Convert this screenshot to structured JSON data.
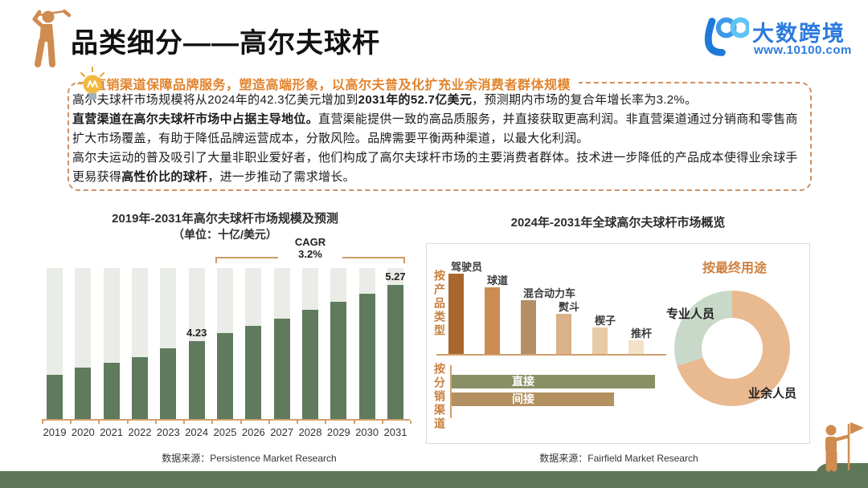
{
  "header": {
    "title": "品类细分——高尔夫球杆",
    "icon": "golfer-swing-icon",
    "icon_color": "#cf8b50",
    "logo": {
      "mark": "10100-logo-mark",
      "brand": "大数跨境",
      "website": "www.10100.com",
      "color": "#2b7ade"
    }
  },
  "summary": {
    "icon": "lightbulb-icon",
    "heading": "直销渠道保障品牌服务，塑造高端形象，以高尔夫普及化扩充业余消费者群体规模",
    "heading_color": "#e2832c",
    "border_color": "#d09163",
    "paragraphs": [
      [
        {
          "t": "高尔夫球杆市场规模将从2024年的42.3亿美元增加到"
        },
        {
          "t": "2031年的52.7亿美元",
          "b": true
        },
        {
          "t": "，预测期内市场的复合年增长率为3.2%。"
        }
      ],
      [
        {
          "t": "直营渠道在高尔夫球杆市场中占据主导地位。",
          "b": true
        },
        {
          "t": "直营渠能提供一致的高品质服务，并直接获取更高利润。非直营渠道通过分销商和零售商扩大市场覆盖，有助于降低品牌运营成本，分散风险。品牌需要平衡两种渠道，以最大化利润。"
        }
      ],
      [
        {
          "t": "高尔夫运动的普及吸引了大量非职业爱好者，他们构成了高尔夫球杆市场的主要消费者群体。技术进一步降低的产品成本使得业余球手更易获得"
        },
        {
          "t": "高性价比的球杆",
          "b": true
        },
        {
          "t": "，进一步推动了需求增长。"
        }
      ]
    ]
  },
  "chart_data": [
    {
      "id": "market_size",
      "type": "bar",
      "title": "2019年-2031年高尔夫球杆市场规模及预测",
      "subtitle": "（单位：十亿/美元）",
      "categories": [
        "2019",
        "2020",
        "2021",
        "2022",
        "2023",
        "2024",
        "2025",
        "2026",
        "2027",
        "2028",
        "2029",
        "2030",
        "2031"
      ],
      "values": [
        3.6,
        3.73,
        3.82,
        3.93,
        4.1,
        4.23,
        4.37,
        4.51,
        4.65,
        4.8,
        4.95,
        5.11,
        5.27
      ],
      "point_labels": [
        {
          "category": "2024",
          "text": "4.23"
        },
        {
          "category": "2031",
          "text": "5.27"
        }
      ],
      "cagr": {
        "label": "CAGR",
        "value": "3.2%",
        "span": [
          "2025",
          "2031"
        ]
      },
      "display_axis": {
        "min": 2.77,
        "max": 5.58
      },
      "bar_color": "#5f7a5c",
      "track_color": "#e9ece7",
      "axis_color": "#d2a06c",
      "source": "数据来源：Persistence Market Research"
    },
    {
      "id": "market_overview",
      "type": "composite",
      "title": "2024年-2031年全球高尔夫球杆市场概览",
      "product_type": {
        "label": "按产品类型",
        "type": "bar",
        "categories": [
          "驾驶员",
          "球道",
          "混合动力车",
          "熨斗",
          "楔子",
          "推杆"
        ],
        "relative_values": [
          100,
          83,
          67,
          50,
          33,
          17
        ],
        "colors": [
          "#a9672f",
          "#ca8c50",
          "#b48f66",
          "#d9b28a",
          "#e8cba5",
          "#f2e3c8"
        ]
      },
      "distribution_channel": {
        "label": "按分销渠道",
        "type": "bar-horizontal",
        "bars": [
          {
            "label": "直接",
            "relative_value": 100,
            "color": "#8a9065"
          },
          {
            "label": "间接",
            "relative_value": 80,
            "color": "#b29060"
          }
        ]
      },
      "end_use": {
        "label": "按最终用途",
        "type": "donut",
        "segments": [
          {
            "label": "业余人员",
            "pct": 70,
            "color": "#e9b98f"
          },
          {
            "label": "专业人员",
            "pct": 30,
            "color": "#c9d9c9"
          }
        ]
      },
      "source": "数据来源：Fairfield Market Research"
    }
  ],
  "footer": {
    "icon": "flag-golfer-icon",
    "bar_color": "#5d7757"
  }
}
